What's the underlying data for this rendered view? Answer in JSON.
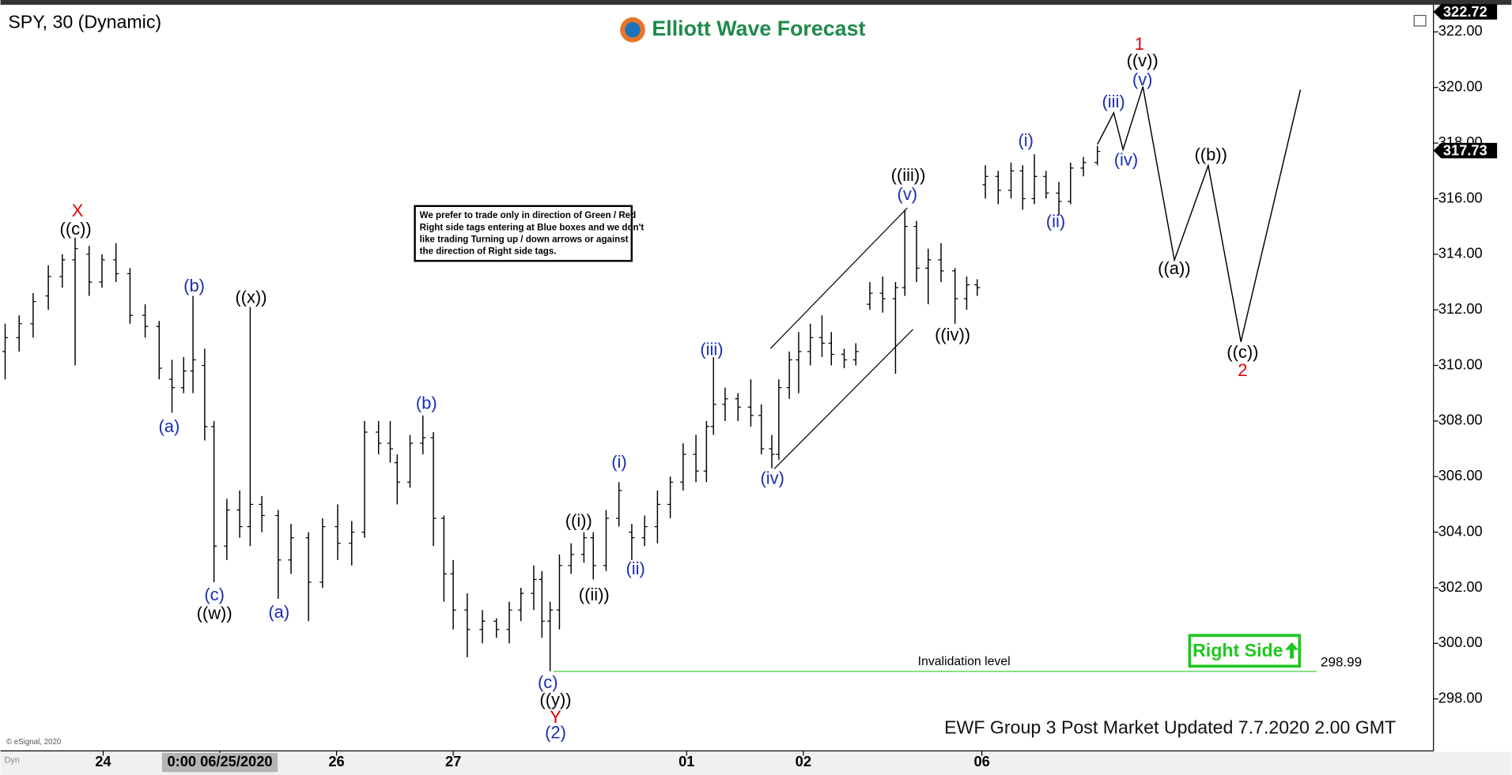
{
  "chart_data": {
    "type": "ohlc",
    "title": "SPY, 30 (Dynamic)",
    "brand": "Elliott Wave Forecast",
    "note": [
      "We prefer to trade only in direction of Green / Red",
      "Right side tags entering at Blue boxes and we don't",
      "like trading Turning up / down arrows or against",
      "the direction of Right side tags."
    ],
    "right_side": "Right Side",
    "footer": "EWF Group 3 Post Market Updated 7.7.2020 2.00 GMT",
    "copyright": "© eSignal, 2020",
    "corner": "Dyn",
    "color": "#000000",
    "xlim": [
      -0.88,
      11.4
    ],
    "ylim": [
      296.13,
      322.87
    ],
    "xticks": [
      {
        "value": 0,
        "label": "24"
      },
      {
        "value": 1,
        "label": "0:00 06/25/2020"
      },
      {
        "value": 2,
        "label": "26"
      },
      {
        "value": 3,
        "label": "27"
      },
      {
        "value": 5,
        "label": "01"
      },
      {
        "value": 6,
        "label": "02"
      },
      {
        "value": 7.53,
        "label": "06"
      }
    ],
    "yticks": [
      {
        "value": 298,
        "label": "298.00"
      },
      {
        "value": 300,
        "label": "300.00"
      },
      {
        "value": 302,
        "label": "302.00"
      },
      {
        "value": 304,
        "label": "304.00"
      },
      {
        "value": 306,
        "label": "306.00"
      },
      {
        "value": 308,
        "label": "308.00"
      },
      {
        "value": 310,
        "label": "310.00"
      },
      {
        "value": 312,
        "label": "312.00"
      },
      {
        "value": 314,
        "label": "314.00"
      },
      {
        "value": 316,
        "label": "316.00"
      },
      {
        "value": 318,
        "label": "318.00"
      },
      {
        "value": 320,
        "label": "320.00"
      },
      {
        "value": 322,
        "label": "322.00"
      }
    ],
    "last_price": 317.73,
    "high_price": 322.72,
    "invalidation": {
      "label": "Invalidation level",
      "value": 298.99,
      "x": [
        3.86,
        10.4
      ]
    },
    "projection": {
      "x": [
        8.52,
        8.66,
        8.74,
        8.91,
        9.18,
        9.47,
        9.75,
        10.26
      ],
      "y": [
        317.95,
        319.09,
        317.77,
        320.03,
        313.79,
        317.19,
        310.85,
        319.92
      ]
    },
    "bars": [
      {
        "x": -0.84,
        "open": 310.5,
        "high": 311.5,
        "low": 309.5,
        "close": 311
      },
      {
        "x": -0.72,
        "open": 311,
        "high": 311.8,
        "low": 310.5,
        "close": 311.5
      },
      {
        "x": -0.6,
        "open": 311.5,
        "high": 312.6,
        "low": 311,
        "close": 312.3
      },
      {
        "x": -0.47,
        "open": 312.5,
        "high": 313.6,
        "low": 312,
        "close": 313.2
      },
      {
        "x": -0.35,
        "open": 313.2,
        "high": 314,
        "low": 312.8,
        "close": 313.8
      },
      {
        "x": -0.24,
        "open": 313.8,
        "high": 314.6,
        "low": 310,
        "close": 314.2
      },
      {
        "x": -0.12,
        "open": 314,
        "high": 314.3,
        "low": 312.5,
        "close": 313
      },
      {
        "x": -0.01,
        "open": 313,
        "high": 314,
        "low": 312.8,
        "close": 313.8
      },
      {
        "x": 0.11,
        "open": 313.8,
        "high": 314.4,
        "low": 313,
        "close": 313.3
      },
      {
        "x": 0.23,
        "open": 313.3,
        "high": 313.5,
        "low": 311.5,
        "close": 311.8
      },
      {
        "x": 0.36,
        "open": 311.8,
        "high": 312.2,
        "low": 311,
        "close": 311.4
      },
      {
        "x": 0.48,
        "open": 311.4,
        "high": 311.6,
        "low": 309.5,
        "close": 309.9
      },
      {
        "x": 0.59,
        "open": 309.5,
        "high": 310.2,
        "low": 308.3,
        "close": 309.2
      },
      {
        "x": 0.69,
        "open": 309.2,
        "high": 310.3,
        "low": 309,
        "close": 309.8
      },
      {
        "x": 0.77,
        "open": 309.8,
        "high": 312.5,
        "low": 309,
        "close": 310.2
      },
      {
        "x": 0.87,
        "open": 310,
        "high": 310.6,
        "low": 307.3,
        "close": 307.8
      },
      {
        "x": 0.95,
        "open": 307.8,
        "high": 308,
        "low": 302.2,
        "close": 303.5
      },
      {
        "x": 1.06,
        "open": 303.5,
        "high": 305.2,
        "low": 303,
        "close": 304.8
      },
      {
        "x": 1.17,
        "open": 304.8,
        "high": 305.5,
        "low": 303.8,
        "close": 304.2
      },
      {
        "x": 1.26,
        "open": 304.2,
        "high": 312.1,
        "low": 303.5,
        "close": 305
      },
      {
        "x": 1.36,
        "open": 305,
        "high": 305.3,
        "low": 304,
        "close": 304.6
      },
      {
        "x": 1.5,
        "open": 304.6,
        "high": 304.8,
        "low": 301.6,
        "close": 303
      },
      {
        "x": 1.61,
        "open": 303,
        "high": 304.3,
        "low": 302.5,
        "close": 303.8
      },
      {
        "x": 1.76,
        "open": 303.8,
        "high": 304,
        "low": 300.8,
        "close": 302.2
      },
      {
        "x": 1.88,
        "open": 302.2,
        "high": 304.5,
        "low": 302,
        "close": 304.2
      },
      {
        "x": 2.01,
        "open": 304.2,
        "high": 305,
        "low": 303,
        "close": 303.6
      },
      {
        "x": 2.13,
        "open": 303.6,
        "high": 304.4,
        "low": 302.8,
        "close": 304
      },
      {
        "x": 2.24,
        "open": 304,
        "high": 308,
        "low": 303.8,
        "close": 307.6
      },
      {
        "x": 2.36,
        "open": 307.6,
        "high": 308,
        "low": 306.8,
        "close": 307.2
      },
      {
        "x": 2.46,
        "open": 307.2,
        "high": 308,
        "low": 306.5,
        "close": 307
      },
      {
        "x": 2.52,
        "open": 306.5,
        "high": 306.8,
        "low": 305,
        "close": 305.8
      },
      {
        "x": 2.63,
        "open": 305.8,
        "high": 307.5,
        "low": 305.6,
        "close": 307.2
      },
      {
        "x": 2.74,
        "open": 307.2,
        "high": 308.2,
        "low": 306.8,
        "close": 307.4
      },
      {
        "x": 2.83,
        "open": 307.4,
        "high": 307.6,
        "low": 303.5,
        "close": 304.5
      },
      {
        "x": 2.92,
        "open": 304.5,
        "high": 304.6,
        "low": 301.5,
        "close": 302.5
      },
      {
        "x": 3,
        "open": 302.5,
        "high": 303,
        "low": 300.5,
        "close": 301.2
      },
      {
        "x": 3.12,
        "open": 301.2,
        "high": 301.8,
        "low": 299.5,
        "close": 300.5
      },
      {
        "x": 3.25,
        "open": 300.5,
        "high": 301.2,
        "low": 300,
        "close": 300.8
      },
      {
        "x": 3.37,
        "open": 300.8,
        "high": 300.9,
        "low": 300.2,
        "close": 300.5
      },
      {
        "x": 3.48,
        "open": 300.5,
        "high": 301.5,
        "low": 300,
        "close": 301.2
      },
      {
        "x": 3.58,
        "open": 301.2,
        "high": 302,
        "low": 300.8,
        "close": 301.8
      },
      {
        "x": 3.69,
        "open": 301.8,
        "high": 302.8,
        "low": 301.2,
        "close": 302.3
      },
      {
        "x": 3.76,
        "open": 302.3,
        "high": 302.6,
        "low": 300.2,
        "close": 300.8
      },
      {
        "x": 3.83,
        "open": 300.8,
        "high": 301.5,
        "low": 299,
        "close": 301.2
      },
      {
        "x": 3.91,
        "open": 301.2,
        "high": 303.2,
        "low": 300.5,
        "close": 302.8
      },
      {
        "x": 4.01,
        "open": 302.8,
        "high": 303.6,
        "low": 302.5,
        "close": 303.2
      },
      {
        "x": 4.12,
        "open": 303.2,
        "high": 304,
        "low": 302.9,
        "close": 303.8
      },
      {
        "x": 4.2,
        "open": 303.8,
        "high": 304,
        "low": 302.3,
        "close": 302.8
      },
      {
        "x": 4.31,
        "open": 302.8,
        "high": 304.8,
        "low": 302.6,
        "close": 304.5
      },
      {
        "x": 4.42,
        "open": 304.5,
        "high": 305.8,
        "low": 304.2,
        "close": 305.5
      },
      {
        "x": 4.53,
        "open": 304,
        "high": 304.3,
        "low": 303,
        "close": 303.8
      },
      {
        "x": 4.64,
        "open": 303.8,
        "high": 304.6,
        "low": 303.5,
        "close": 304.2
      },
      {
        "x": 4.75,
        "open": 304.2,
        "high": 305.5,
        "low": 303.6,
        "close": 305
      },
      {
        "x": 4.86,
        "open": 305,
        "high": 306,
        "low": 304.5,
        "close": 305.8
      },
      {
        "x": 4.97,
        "open": 305.8,
        "high": 307.2,
        "low": 305.5,
        "close": 306.8
      },
      {
        "x": 5.08,
        "open": 306.8,
        "high": 307.5,
        "low": 305.8,
        "close": 306.2
      },
      {
        "x": 5.17,
        "open": 306.2,
        "high": 308,
        "low": 305.8,
        "close": 307.8
      },
      {
        "x": 5.23,
        "open": 307.8,
        "high": 310.3,
        "low": 307.5,
        "close": 308.6
      },
      {
        "x": 5.33,
        "open": 308.6,
        "high": 309.2,
        "low": 308,
        "close": 308.8
      },
      {
        "x": 5.44,
        "open": 308.8,
        "high": 309,
        "low": 308,
        "close": 308.5
      },
      {
        "x": 5.55,
        "open": 308.5,
        "high": 309.5,
        "low": 307.8,
        "close": 308.2
      },
      {
        "x": 5.64,
        "open": 308.2,
        "high": 308.6,
        "low": 306.8,
        "close": 307
      },
      {
        "x": 5.73,
        "open": 307,
        "high": 307.5,
        "low": 306.3,
        "close": 306.8
      },
      {
        "x": 5.79,
        "open": 306.8,
        "high": 309.5,
        "low": 306.6,
        "close": 309.2
      },
      {
        "x": 5.88,
        "open": 309.2,
        "high": 310.5,
        "low": 308.8,
        "close": 310.2
      },
      {
        "x": 5.96,
        "open": 310.2,
        "high": 311.2,
        "low": 309,
        "close": 310.5
      },
      {
        "x": 6.06,
        "open": 310.5,
        "high": 311.5,
        "low": 310,
        "close": 311
      },
      {
        "x": 6.16,
        "open": 311,
        "high": 311.8,
        "low": 310.3,
        "close": 310.8
      },
      {
        "x": 6.24,
        "open": 310.8,
        "high": 311.2,
        "low": 310,
        "close": 310.4
      },
      {
        "x": 6.35,
        "open": 310.4,
        "high": 310.6,
        "low": 309.9,
        "close": 310.2
      },
      {
        "x": 6.45,
        "open": 310.2,
        "high": 310.8,
        "low": 310,
        "close": 310.5
      },
      {
        "x": 6.57,
        "open": 312.2,
        "high": 313,
        "low": 312,
        "close": 312.6
      },
      {
        "x": 6.68,
        "open": 312.6,
        "high": 313.2,
        "low": 311.9,
        "close": 312.4
      },
      {
        "x": 6.79,
        "open": 312.4,
        "high": 313,
        "low": 309.7,
        "close": 312.8
      },
      {
        "x": 6.87,
        "open": 312.8,
        "high": 315.6,
        "low": 312.5,
        "close": 315
      },
      {
        "x": 6.97,
        "open": 315,
        "high": 315.2,
        "low": 313,
        "close": 313.5
      },
      {
        "x": 7.07,
        "open": 313.5,
        "high": 314.2,
        "low": 312.2,
        "close": 313.8
      },
      {
        "x": 7.18,
        "open": 313.8,
        "high": 314.4,
        "low": 313,
        "close": 313.4
      },
      {
        "x": 7.3,
        "open": 313.4,
        "high": 313.5,
        "low": 311.5,
        "close": 312.4
      },
      {
        "x": 7.4,
        "open": 312.4,
        "high": 313.2,
        "low": 312,
        "close": 312.9
      },
      {
        "x": 7.49,
        "open": 312.9,
        "high": 313.1,
        "low": 312.5,
        "close": 312.8
      },
      {
        "x": 7.56,
        "open": 316.5,
        "high": 317.2,
        "low": 316,
        "close": 316.8
      },
      {
        "x": 7.67,
        "open": 316.8,
        "high": 317,
        "low": 315.8,
        "close": 316.3
      },
      {
        "x": 7.78,
        "open": 316.3,
        "high": 317.3,
        "low": 316,
        "close": 317
      },
      {
        "x": 7.88,
        "open": 317,
        "high": 317.2,
        "low": 315.6,
        "close": 316
      },
      {
        "x": 7.98,
        "open": 316,
        "high": 317.6,
        "low": 315.8,
        "close": 316.8
      },
      {
        "x": 8.08,
        "open": 316.8,
        "high": 317,
        "low": 316,
        "close": 316.2
      },
      {
        "x": 8.19,
        "open": 316.2,
        "high": 316.6,
        "low": 315.4,
        "close": 315.9
      },
      {
        "x": 8.29,
        "open": 315.9,
        "high": 317.3,
        "low": 315.8,
        "close": 317.1
      },
      {
        "x": 8.4,
        "open": 317.1,
        "high": 317.5,
        "low": 316.8,
        "close": 317.3
      },
      {
        "x": 8.52,
        "open": 317.3,
        "high": 317.9,
        "low": 317.2,
        "close": 317.7
      }
    ],
    "annotations": [
      {
        "text": "X",
        "color": "#e00000"
      },
      {
        "text": "((c))",
        "color": "#000000"
      },
      {
        "text": "(b)",
        "color": "#1a2db0"
      },
      {
        "text": "((x))",
        "color": "#000000"
      },
      {
        "text": "(a)",
        "color": "#1a2db0"
      },
      {
        "text": "(c)",
        "color": "#1a2db0"
      },
      {
        "text": "((w))",
        "color": "#000000"
      },
      {
        "text": "(a)",
        "color": "#1a2db0"
      },
      {
        "text": "(b)",
        "color": "#1a2db0"
      },
      {
        "text": "(i)",
        "color": "#1a2db0"
      },
      {
        "text": "((i))",
        "color": "#000000"
      },
      {
        "text": "((ii))",
        "color": "#000000"
      },
      {
        "text": "(ii)",
        "color": "#1a2db0"
      },
      {
        "text": "(c)",
        "color": "#1a2db0"
      },
      {
        "text": "((y))",
        "color": "#000000"
      },
      {
        "text": "Y",
        "color": "#e00000"
      },
      {
        "text": "(2)",
        "color": "#1a2db0"
      },
      {
        "text": "(iii)",
        "color": "#1a2db0"
      },
      {
        "text": "(iv)",
        "color": "#1a2db0"
      },
      {
        "text": "((iii))",
        "color": "#000000"
      },
      {
        "text": "(v)",
        "color": "#1a2db0"
      },
      {
        "text": "((iv))",
        "color": "#000000"
      },
      {
        "text": "(i)",
        "color": "#1a2db0"
      },
      {
        "text": "(ii)",
        "color": "#1a2db0"
      },
      {
        "text": "(iii)",
        "color": "#1a2db0"
      },
      {
        "text": "(iv)",
        "color": "#1a2db0"
      },
      {
        "text": "1",
        "color": "#e00000"
      },
      {
        "text": "((v))",
        "color": "#000000"
      },
      {
        "text": "(v)",
        "color": "#1a2db0"
      },
      {
        "text": "((b))",
        "color": "#000000"
      },
      {
        "text": "((a))",
        "color": "#000000"
      },
      {
        "text": "((c))",
        "color": "#000000"
      },
      {
        "text": "2",
        "color": "#e00000"
      }
    ]
  }
}
